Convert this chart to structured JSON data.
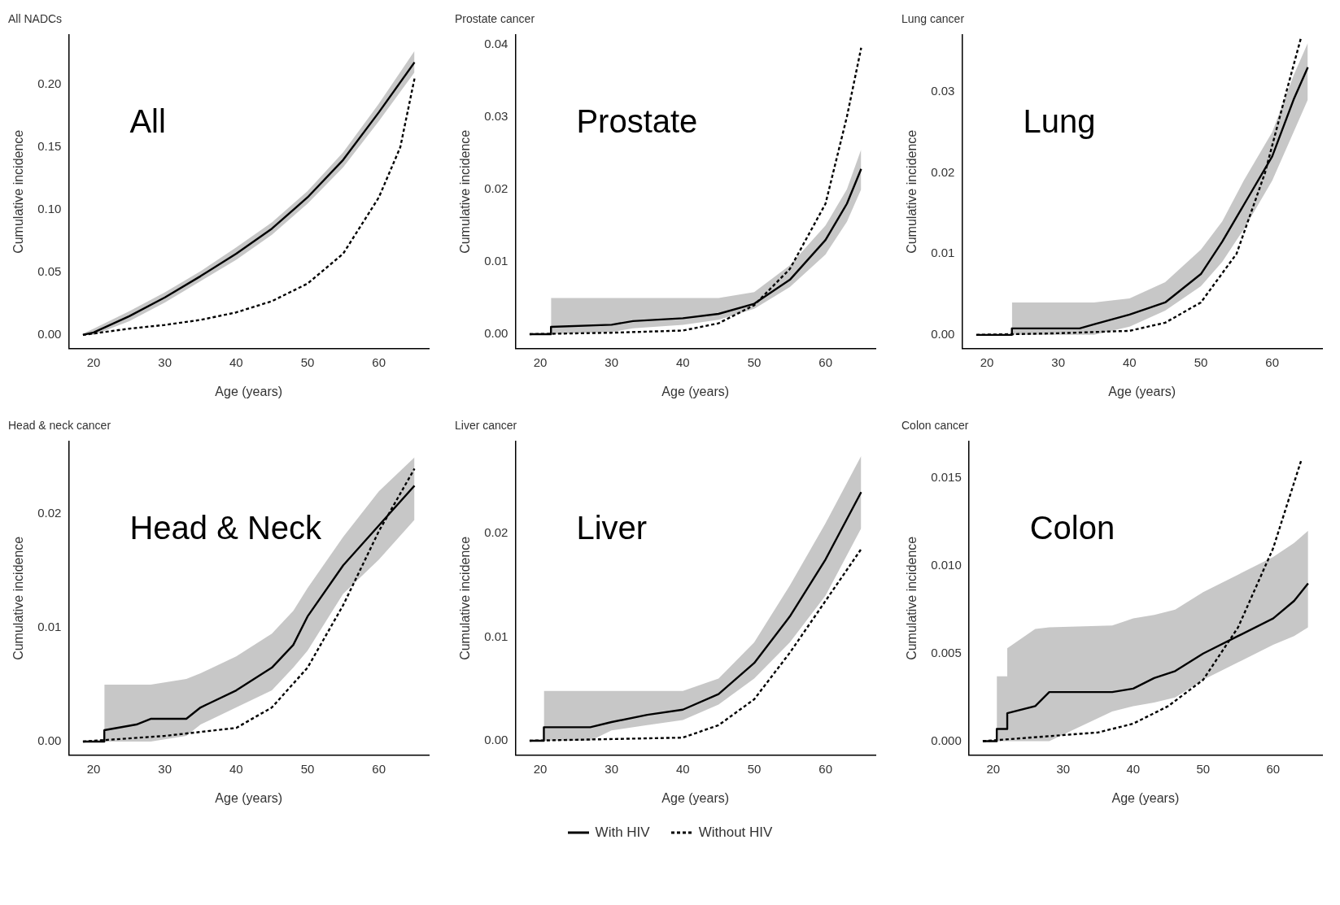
{
  "chart_data": [
    {
      "type": "line",
      "title": "All NADCs",
      "xlabel": "Age (years)",
      "ylabel": "Cumulative incidence",
      "annotations": [
        "All"
      ],
      "legend": "bottom",
      "xlim": [
        16.5,
        67
      ],
      "xticks": [
        20,
        30,
        40,
        50,
        60
      ],
      "ylim": [
        -0.011,
        0.24
      ],
      "yticks": [
        {
          "value": 0,
          "label": "0.00"
        },
        {
          "value": 0.05,
          "label": "0.05"
        },
        {
          "value": 0.1,
          "label": "0.10"
        },
        {
          "value": 0.15,
          "label": "0.15"
        },
        {
          "value": 0.2,
          "label": "0.20"
        }
      ],
      "grid": false,
      "marker": "none",
      "series": [
        {
          "name": "With HIV",
          "color": "#000000",
          "line_style": "solid",
          "x": [
            18.5,
            20,
            25,
            30,
            35,
            40,
            45,
            50,
            55,
            60,
            65
          ],
          "values": [
            0,
            0.002,
            0.015,
            0.03,
            0.047,
            0.065,
            0.085,
            0.11,
            0.14,
            0.178,
            0.218
          ],
          "lower": [
            0,
            0,
            0.011,
            0.026,
            0.043,
            0.06,
            0.08,
            0.105,
            0.134,
            0.171,
            0.21
          ],
          "upper": [
            0.001,
            0.005,
            0.019,
            0.034,
            0.051,
            0.07,
            0.09,
            0.115,
            0.146,
            0.185,
            0.227
          ]
        },
        {
          "name": "Without HIV",
          "color": "#000000",
          "line_style": "dashed",
          "x": [
            18.5,
            25,
            30,
            35,
            40,
            45,
            50,
            55,
            60,
            63,
            65
          ],
          "values": [
            0,
            0.005,
            0.008,
            0.012,
            0.018,
            0.027,
            0.041,
            0.065,
            0.11,
            0.15,
            0.205
          ]
        }
      ]
    },
    {
      "type": "line",
      "title": "Prostate cancer",
      "xlabel": "Age (years)",
      "ylabel": "Cumulative incidence",
      "annotations": [
        "Prostate"
      ],
      "xlim": [
        16.5,
        67
      ],
      "xticks": [
        20,
        30,
        40,
        50,
        60
      ],
      "ylim": [
        -0.002,
        0.0413
      ],
      "yticks": [
        {
          "value": 0,
          "label": "0.00"
        },
        {
          "value": 0.01,
          "label": "0.01"
        },
        {
          "value": 0.02,
          "label": "0.02"
        },
        {
          "value": 0.03,
          "label": "0.03"
        },
        {
          "value": 0.04,
          "label": "0.04"
        }
      ],
      "grid": false,
      "marker": "none",
      "series": [
        {
          "color": "#000000",
          "line_style": "solid",
          "x": [
            18.5,
            21.5,
            21.5,
            30,
            33,
            40,
            45,
            50,
            55,
            60,
            63,
            65
          ],
          "values": [
            0,
            0,
            0.001,
            0.0013,
            0.0018,
            0.0022,
            0.0028,
            0.0042,
            0.0075,
            0.013,
            0.018,
            0.0228
          ],
          "lower": [
            null,
            null,
            0,
            0.0003,
            0.0008,
            0.0013,
            0.002,
            0.0035,
            0.0065,
            0.011,
            0.0155,
            0.02
          ],
          "upper": [
            null,
            null,
            0.005,
            0.005,
            0.005,
            0.005,
            0.005,
            0.0058,
            0.0095,
            0.015,
            0.02,
            0.0255
          ]
        },
        {
          "color": "#000000",
          "line_style": "dashed",
          "x": [
            18.5,
            30,
            40,
            45,
            50,
            55,
            60,
            63,
            65
          ],
          "values": [
            0,
            0.0002,
            0.0005,
            0.0015,
            0.004,
            0.009,
            0.018,
            0.03,
            0.0395
          ]
        }
      ]
    },
    {
      "type": "line",
      "title": "Lung cancer",
      "xlabel": "Age (years)",
      "ylabel": "Cumulative incidence",
      "annotations": [
        "Lung"
      ],
      "xlim": [
        16.5,
        67
      ],
      "xticks": [
        20,
        30,
        40,
        50,
        60
      ],
      "ylim": [
        -0.0017,
        0.037
      ],
      "yticks": [
        {
          "value": 0,
          "label": "0.00"
        },
        {
          "value": 0.01,
          "label": "0.01"
        },
        {
          "value": 0.02,
          "label": "0.02"
        },
        {
          "value": 0.03,
          "label": "0.03"
        }
      ],
      "grid": false,
      "marker": "none",
      "series": [
        {
          "color": "#000000",
          "line_style": "solid",
          "x": [
            18.5,
            23.5,
            23.5,
            33,
            35,
            40,
            45,
            50,
            53,
            56,
            60,
            63,
            65
          ],
          "values": [
            0,
            0,
            0.0008,
            0.0008,
            0.0013,
            0.0025,
            0.004,
            0.0075,
            0.0115,
            0.016,
            0.022,
            0.029,
            0.033
          ],
          "lower": [
            null,
            null,
            0,
            0,
            0,
            0.001,
            0.003,
            0.006,
            0.009,
            0.013,
            0.019,
            0.025,
            0.029
          ],
          "upper": [
            null,
            null,
            0.004,
            0.004,
            0.004,
            0.0045,
            0.0065,
            0.0105,
            0.014,
            0.019,
            0.025,
            0.032,
            0.036
          ]
        },
        {
          "color": "#000000",
          "line_style": "dashed",
          "x": [
            18.5,
            30,
            40,
            45,
            50,
            55,
            59,
            62,
            64
          ],
          "values": [
            0,
            0.0002,
            0.0005,
            0.0015,
            0.004,
            0.01,
            0.02,
            0.03,
            0.0365
          ]
        }
      ]
    },
    {
      "type": "line",
      "title": "Head & neck cancer",
      "xlabel": "Age (years)",
      "ylabel": "Cumulative incidence",
      "annotations": [
        "Head & Neck"
      ],
      "xlim": [
        16.5,
        67
      ],
      "xticks": [
        20,
        30,
        40,
        50,
        60
      ],
      "ylim": [
        -0.0012,
        0.0264
      ],
      "yticks": [
        {
          "value": 0,
          "label": "0.00"
        },
        {
          "value": 0.01,
          "label": "0.01"
        },
        {
          "value": 0.02,
          "label": "0.02"
        }
      ],
      "grid": false,
      "marker": "none",
      "series": [
        {
          "color": "#000000",
          "line_style": "solid",
          "x": [
            18.5,
            21.5,
            21.5,
            26,
            28,
            33,
            35,
            40,
            45,
            48,
            50,
            55,
            60,
            65
          ],
          "values": [
            0,
            0,
            0.001,
            0.0015,
            0.002,
            0.002,
            0.003,
            0.0045,
            0.0065,
            0.0085,
            0.011,
            0.0155,
            0.019,
            0.0225
          ],
          "lower": [
            null,
            null,
            0,
            0,
            0,
            0.0005,
            0.0015,
            0.003,
            0.0045,
            0.0065,
            0.008,
            0.013,
            0.016,
            0.0195
          ],
          "upper": [
            null,
            null,
            0.005,
            0.005,
            0.005,
            0.0055,
            0.006,
            0.0075,
            0.0095,
            0.0115,
            0.0135,
            0.018,
            0.022,
            0.025
          ]
        },
        {
          "color": "#000000",
          "line_style": "dashed",
          "x": [
            18.5,
            30,
            40,
            45,
            50,
            55,
            60,
            65
          ],
          "values": [
            0,
            0.0005,
            0.0012,
            0.003,
            0.0065,
            0.012,
            0.0185,
            0.024
          ]
        }
      ]
    },
    {
      "type": "line",
      "title": "Liver cancer",
      "xlabel": "Age (years)",
      "ylabel": "Cumulative incidence",
      "annotations": [
        "Liver"
      ],
      "xlim": [
        16.5,
        67
      ],
      "xticks": [
        20,
        30,
        40,
        50,
        60
      ],
      "ylim": [
        -0.0014,
        0.0289
      ],
      "yticks": [
        {
          "value": 0,
          "label": "0.00"
        },
        {
          "value": 0.01,
          "label": "0.01"
        },
        {
          "value": 0.02,
          "label": "0.02"
        }
      ],
      "grid": false,
      "marker": "none",
      "series": [
        {
          "color": "#000000",
          "line_style": "solid",
          "x": [
            18.5,
            20.5,
            20.5,
            27,
            30,
            35,
            40,
            45,
            50,
            55,
            60,
            65
          ],
          "values": [
            0,
            0,
            0.0013,
            0.0013,
            0.0018,
            0.0025,
            0.003,
            0.0045,
            0.0075,
            0.012,
            0.0175,
            0.024
          ],
          "lower": [
            null,
            null,
            0,
            0,
            0.001,
            0.0015,
            0.002,
            0.0035,
            0.006,
            0.0095,
            0.014,
            0.0205
          ],
          "upper": [
            null,
            null,
            0.0048,
            0.0048,
            0.0048,
            0.0048,
            0.0048,
            0.006,
            0.0095,
            0.015,
            0.021,
            0.0275
          ]
        },
        {
          "color": "#000000",
          "line_style": "dashed",
          "x": [
            18.5,
            40,
            45,
            50,
            55,
            60,
            65
          ],
          "values": [
            0,
            0.0003,
            0.0015,
            0.004,
            0.0085,
            0.0135,
            0.0185
          ]
        }
      ]
    },
    {
      "type": "line",
      "title": "Colon cancer",
      "xlabel": "Age (years)",
      "ylabel": "Cumulative incidence",
      "annotations": [
        "Colon"
      ],
      "xlim": [
        16.5,
        67
      ],
      "xticks": [
        20,
        30,
        40,
        50,
        60
      ],
      "ylim": [
        -0.0008,
        0.0171
      ],
      "yticks": [
        {
          "value": 0,
          "label": "0.000"
        },
        {
          "value": 0.005,
          "label": "0.005"
        },
        {
          "value": 0.01,
          "label": "0.010"
        },
        {
          "value": 0.015,
          "label": "0.015"
        }
      ],
      "grid": false,
      "marker": "none",
      "series": [
        {
          "color": "#000000",
          "line_style": "solid",
          "x": [
            18.5,
            20.5,
            20.5,
            22,
            22,
            26,
            28,
            37,
            40,
            43,
            46,
            50,
            55,
            60,
            63,
            65
          ],
          "values": [
            0,
            0,
            0.0007,
            0.0007,
            0.0016,
            0.002,
            0.0028,
            0.0028,
            0.003,
            0.0036,
            0.004,
            0.005,
            0.006,
            0.007,
            0.008,
            0.009
          ],
          "lower": [
            null,
            null,
            0,
            0,
            0,
            0,
            0,
            0.0017,
            0.002,
            0.0022,
            0.0025,
            0.0035,
            0.0045,
            0.0055,
            0.006,
            0.0065
          ],
          "upper": [
            null,
            null,
            0.0037,
            0.0037,
            0.0053,
            0.0064,
            0.0065,
            0.0066,
            0.007,
            0.0072,
            0.0075,
            0.0085,
            0.0095,
            0.0105,
            0.0113,
            0.012
          ]
        },
        {
          "color": "#000000",
          "line_style": "dashed",
          "x": [
            18.5,
            35,
            40,
            45,
            50,
            55,
            60,
            64
          ],
          "values": [
            0,
            0.0005,
            0.001,
            0.002,
            0.0035,
            0.0065,
            0.011,
            0.016
          ]
        }
      ]
    }
  ]
}
